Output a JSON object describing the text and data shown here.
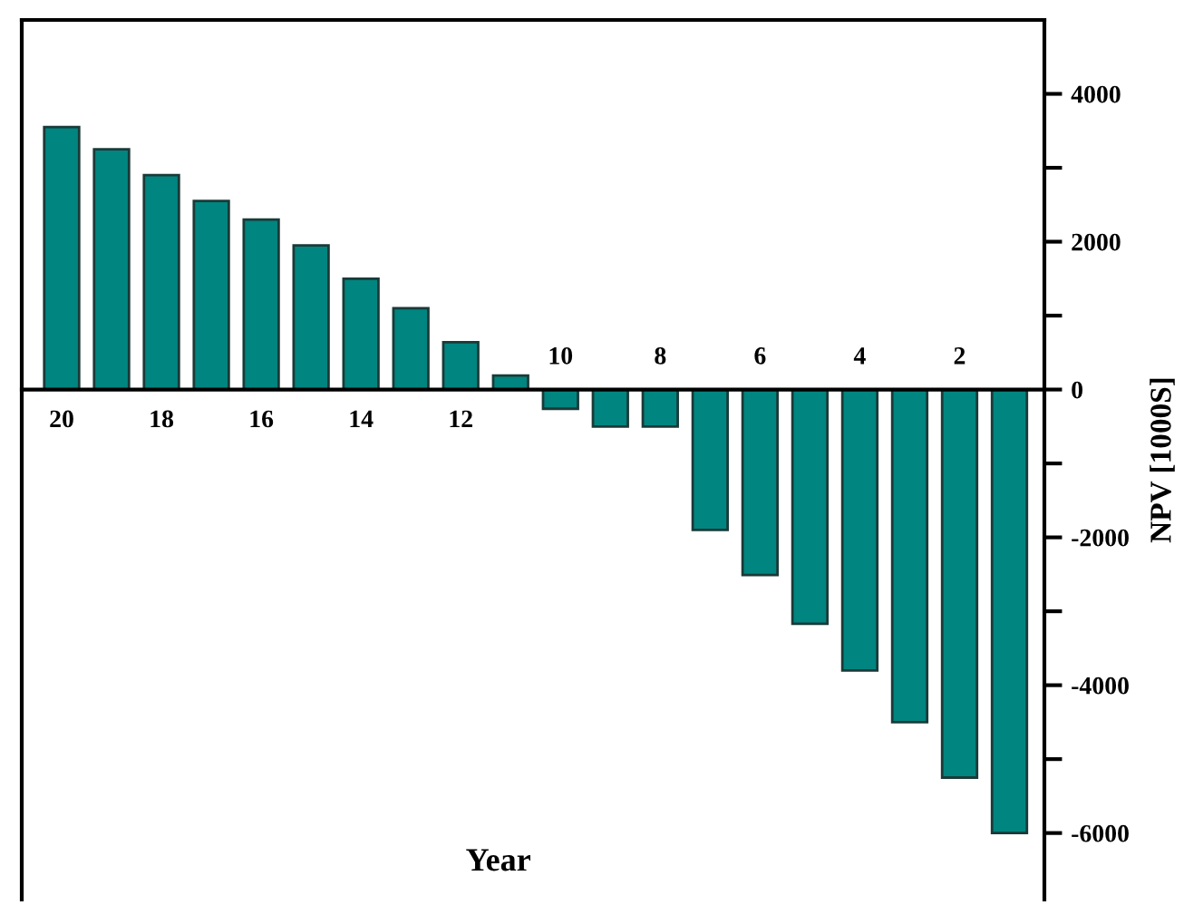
{
  "chart_data": {
    "type": "bar",
    "xlabel": "Year",
    "y2label": "NPV [1000S]",
    "categories": [
      "20",
      null,
      "18",
      null,
      "16",
      null,
      "14",
      null,
      "12",
      null,
      "10",
      null,
      "8",
      null,
      "6",
      null,
      "4",
      null,
      "2",
      null
    ],
    "series": [
      {
        "color": "#008580",
        "axis": "y2",
        "values": [
          3550,
          3250,
          2900,
          2550,
          2300,
          1950,
          1500,
          1100,
          640,
          190,
          -260,
          -500,
          -500,
          -1900,
          -2510,
          -3170,
          -3800,
          -4500,
          -5250,
          -6000
        ]
      }
    ],
    "y2lim": [
      -6900,
      5000
    ],
    "y2ticks": [
      {
        "value": -6000,
        "label": "-6000"
      },
      {
        "value": -5000,
        "label": null
      },
      {
        "value": -4000,
        "label": "-4000"
      },
      {
        "value": -3000,
        "label": null
      },
      {
        "value": -2000,
        "label": "-2000"
      },
      {
        "value": -1000,
        "label": null
      },
      0,
      {
        "value": 1000,
        "label": null
      },
      2000,
      {
        "value": 3000,
        "label": null
      },
      4000
    ],
    "grid": false,
    "legend": false
  }
}
